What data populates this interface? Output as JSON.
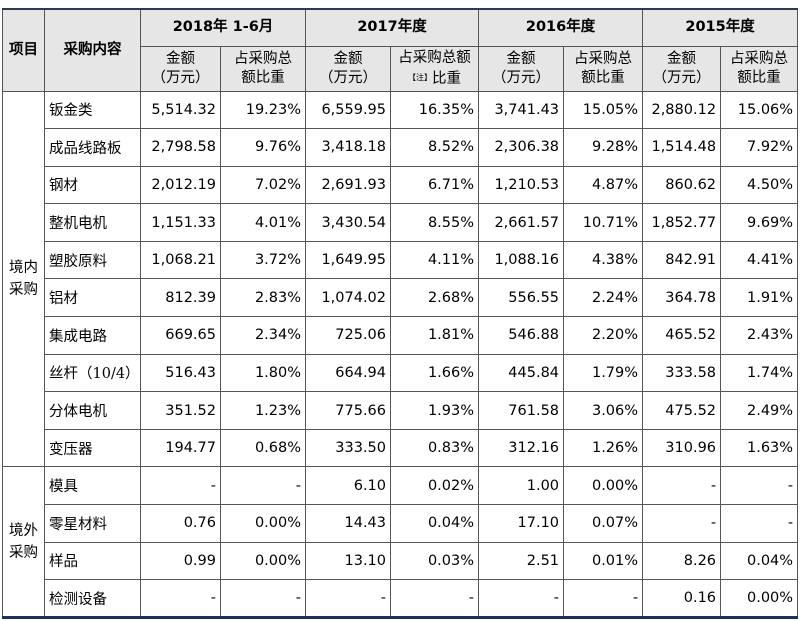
{
  "table": {
    "header": {
      "item": "项目",
      "content": "采购内容",
      "periods": [
        "2018年 1-6月",
        "2017年度",
        "2016年度",
        "2015年度"
      ],
      "subheaders": [
        [
          "金额",
          "（万元）"
        ],
        [
          "占采购总",
          "额比重"
        ],
        [
          "金额",
          "（万元）"
        ],
        [
          "占采购总额",
          "【注】",
          "比重"
        ],
        [
          "金额",
          "（万元）"
        ],
        [
          "占采购总",
          "额比重"
        ],
        [
          "金额",
          "（万元）"
        ],
        [
          "占采购总",
          "额比重"
        ]
      ]
    },
    "groups": [
      {
        "label": "境内采购",
        "rows": [
          {
            "name": "钣金类",
            "cells": [
              "5,514.32",
              "19.23%",
              "6,559.95",
              "16.35%",
              "3,741.43",
              "15.05%",
              "2,880.12",
              "15.06%"
            ]
          },
          {
            "name": "成品线路板",
            "cells": [
              "2,798.58",
              "9.76%",
              "3,418.18",
              "8.52%",
              "2,306.38",
              "9.28%",
              "1,514.48",
              "7.92%"
            ]
          },
          {
            "name": "钢材",
            "cells": [
              "2,012.19",
              "7.02%",
              "2,691.93",
              "6.71%",
              "1,210.53",
              "4.87%",
              "860.62",
              "4.50%"
            ]
          },
          {
            "name": "整机电机",
            "cells": [
              "1,151.33",
              "4.01%",
              "3,430.54",
              "8.55%",
              "2,661.57",
              "10.71%",
              "1,852.77",
              "9.69%"
            ]
          },
          {
            "name": "塑胶原料",
            "cells": [
              "1,068.21",
              "3.72%",
              "1,649.95",
              "4.11%",
              "1,088.16",
              "4.38%",
              "842.91",
              "4.41%"
            ]
          },
          {
            "name": "铝材",
            "cells": [
              "812.39",
              "2.83%",
              "1,074.02",
              "2.68%",
              "556.55",
              "2.24%",
              "364.78",
              "1.91%"
            ]
          },
          {
            "name": "集成电路",
            "cells": [
              "669.65",
              "2.34%",
              "725.06",
              "1.81%",
              "546.88",
              "2.20%",
              "465.52",
              "2.43%"
            ]
          },
          {
            "name": "丝杆（10/4）",
            "cells": [
              "516.43",
              "1.80%",
              "664.94",
              "1.66%",
              "445.84",
              "1.79%",
              "333.58",
              "1.74%"
            ]
          },
          {
            "name": "分体电机",
            "cells": [
              "351.52",
              "1.23%",
              "775.66",
              "1.93%",
              "761.58",
              "3.06%",
              "475.52",
              "2.49%"
            ]
          },
          {
            "name": "变压器",
            "cells": [
              "194.77",
              "0.68%",
              "333.50",
              "0.83%",
              "312.16",
              "1.26%",
              "310.96",
              "1.63%"
            ]
          }
        ]
      },
      {
        "label": "境外采购",
        "rows": [
          {
            "name": "模具",
            "cells": [
              "-",
              "-",
              "6.10",
              "0.02%",
              "1.00",
              "0.00%",
              "-",
              "-"
            ]
          },
          {
            "name": "零星材料",
            "cells": [
              "0.76",
              "0.00%",
              "14.43",
              "0.04%",
              "17.10",
              "0.07%",
              "-",
              "-"
            ]
          },
          {
            "name": "样品",
            "cells": [
              "0.99",
              "0.00%",
              "13.10",
              "0.03%",
              "2.51",
              "0.01%",
              "8.26",
              "0.04%"
            ]
          },
          {
            "name": "检测设备",
            "cells": [
              "-",
              "-",
              "-",
              "-",
              "-",
              "-",
              "0.16",
              "0.00%"
            ]
          }
        ]
      }
    ]
  }
}
